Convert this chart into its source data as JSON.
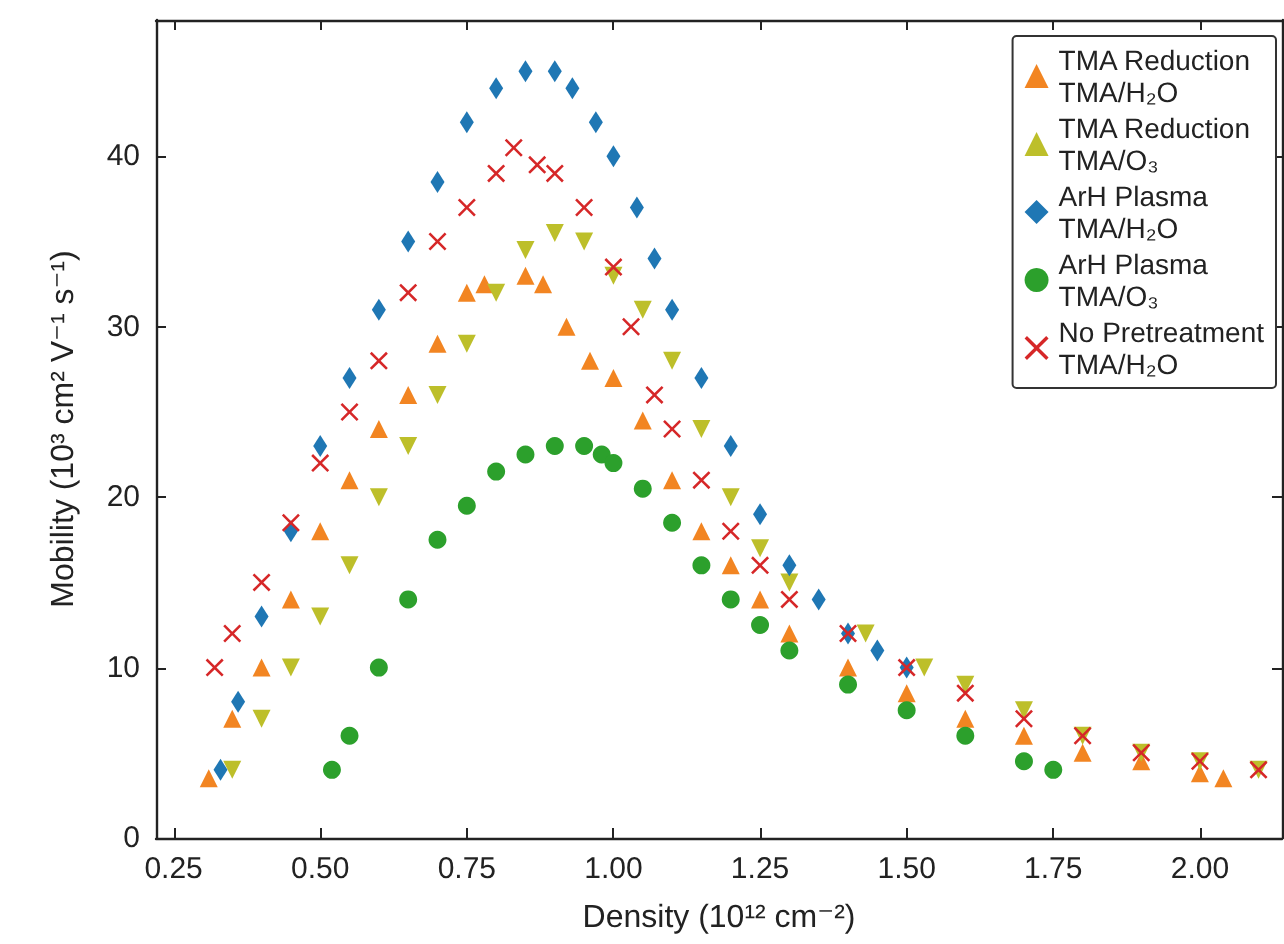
{
  "chart_data": {
    "type": "scatter",
    "xlabel": "Density (10¹² cm⁻²)",
    "ylabel": "Mobility (10³ cm² V⁻¹ s⁻¹)",
    "xlim": [
      0.22,
      2.14
    ],
    "xticks": [
      {
        "value": 0.25,
        "label": "0.25"
      },
      {
        "value": 0.5,
        "label": "0.50"
      },
      {
        "value": 0.75,
        "label": "0.75"
      },
      {
        "value": 1,
        "label": "1.00"
      },
      {
        "value": 1.25,
        "label": "1.25"
      },
      {
        "value": 1.5,
        "label": "1.50"
      },
      {
        "value": 1.75,
        "label": "1.75"
      },
      {
        "value": 2,
        "label": "2.00"
      }
    ],
    "ylim": [
      0,
      48
    ],
    "yticks": [
      0,
      10,
      20,
      30,
      40
    ],
    "grid": false,
    "legend": "top right",
    "series": [
      {
        "name": "TMA Reduction\nTMA/H₂O",
        "color": "#f28522",
        "marker": "triangle",
        "x": [
          0.31,
          0.35,
          0.4,
          0.45,
          0.5,
          0.55,
          0.6,
          0.65,
          0.7,
          0.75,
          0.78,
          0.85,
          0.88,
          0.92,
          0.96,
          1.0,
          1.05,
          1.1,
          1.15,
          1.2,
          1.25,
          1.3,
          1.4,
          1.5,
          1.6,
          1.7,
          1.8,
          1.9,
          2.0,
          2.04
        ],
        "values": [
          3.5,
          7,
          10,
          14,
          18,
          21,
          24,
          26,
          29,
          32,
          32.5,
          33,
          32.5,
          30,
          28,
          27,
          24.5,
          21,
          18,
          16,
          14,
          12,
          10,
          8.5,
          7,
          6,
          5,
          4.5,
          3.8,
          3.5
        ]
      },
      {
        "name": "TMA Reduction\nTMA/O₃",
        "color": "#bdbf2a",
        "marker": "triangle-down",
        "x": [
          0.35,
          0.4,
          0.45,
          0.5,
          0.55,
          0.6,
          0.65,
          0.7,
          0.75,
          0.8,
          0.85,
          0.9,
          0.95,
          1.0,
          1.05,
          1.1,
          1.15,
          1.2,
          1.25,
          1.3,
          1.43,
          1.53,
          1.6,
          1.7,
          1.8,
          1.9,
          2.0,
          2.1
        ],
        "values": [
          4,
          7,
          10,
          13,
          16,
          20,
          23,
          26,
          29,
          32,
          34.5,
          35.5,
          35,
          33,
          31,
          28,
          24,
          20,
          17,
          15,
          12,
          10,
          9,
          7.5,
          6,
          5,
          4.5,
          4
        ]
      },
      {
        "name": "ArH Plasma\nTMA/H₂O",
        "color": "#1f77b4",
        "marker": "diamond",
        "x": [
          0.33,
          0.36,
          0.4,
          0.45,
          0.5,
          0.55,
          0.6,
          0.65,
          0.7,
          0.75,
          0.8,
          0.85,
          0.9,
          0.93,
          0.97,
          1.0,
          1.04,
          1.07,
          1.1,
          1.15,
          1.2,
          1.25,
          1.3,
          1.35,
          1.4,
          1.45,
          1.5
        ],
        "values": [
          4,
          8,
          13,
          18,
          23,
          27,
          31,
          35,
          38.5,
          42,
          44,
          45,
          45,
          44,
          42,
          40,
          37,
          34,
          31,
          27,
          23,
          19,
          16,
          14,
          12,
          11,
          10
        ]
      },
      {
        "name": "ArH Plasma\nTMA/O₃",
        "color": "#2ca02c",
        "marker": "circle",
        "x": [
          0.52,
          0.55,
          0.6,
          0.65,
          0.7,
          0.75,
          0.8,
          0.85,
          0.9,
          0.95,
          0.98,
          1.0,
          1.05,
          1.1,
          1.15,
          1.2,
          1.25,
          1.3,
          1.4,
          1.5,
          1.6,
          1.7,
          1.75
        ],
        "values": [
          4,
          6,
          10,
          14,
          17.5,
          19.5,
          21.5,
          22.5,
          23,
          23,
          22.5,
          22,
          20.5,
          18.5,
          16,
          14,
          12.5,
          11,
          9,
          7.5,
          6,
          4.5,
          4
        ]
      },
      {
        "name": "No Pretreatment\nTMA/H₂O",
        "color": "#d62728",
        "marker": "cross",
        "x": [
          0.32,
          0.35,
          0.4,
          0.45,
          0.5,
          0.55,
          0.6,
          0.65,
          0.7,
          0.75,
          0.8,
          0.83,
          0.87,
          0.9,
          0.95,
          1.0,
          1.03,
          1.07,
          1.1,
          1.15,
          1.2,
          1.25,
          1.3,
          1.4,
          1.5,
          1.6,
          1.7,
          1.8,
          1.9,
          2.0,
          2.1
        ],
        "values": [
          10,
          12,
          15,
          18.5,
          22,
          25,
          28,
          32,
          35,
          37,
          39,
          40.5,
          39.5,
          39,
          37,
          33.5,
          30,
          26,
          24,
          21,
          18,
          16,
          14,
          12,
          10,
          8.5,
          7,
          6,
          5,
          4.5,
          4
        ]
      }
    ]
  }
}
